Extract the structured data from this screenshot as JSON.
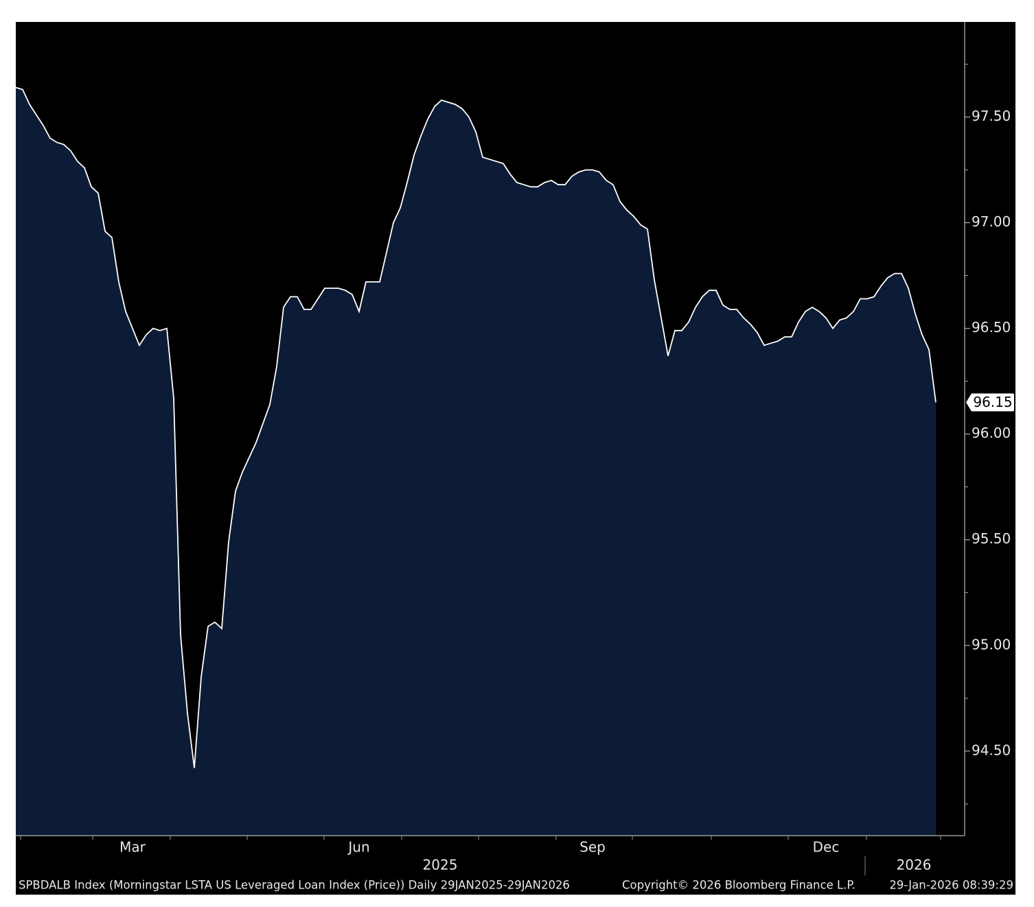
{
  "chart_data": {
    "type": "area",
    "categories": [
      null,
      null,
      null,
      null,
      null,
      null,
      null,
      null,
      null,
      null,
      null,
      null,
      null,
      null,
      null,
      null,
      null,
      "Mar",
      null,
      null,
      null,
      null,
      null,
      null,
      null,
      null,
      null,
      null,
      null,
      null,
      null,
      null,
      null,
      null,
      null,
      null,
      null,
      null,
      null,
      null,
      null,
      null,
      null,
      null,
      null,
      null,
      null,
      null,
      null,
      null,
      "Jun",
      null,
      null,
      null,
      null,
      null,
      null,
      null,
      null,
      null,
      null,
      null,
      null,
      null,
      null,
      null,
      null,
      null,
      null,
      null,
      null,
      null,
      null,
      null,
      null,
      null,
      null,
      null,
      null,
      null,
      null,
      null,
      null,
      null,
      "Sep",
      null,
      null,
      null,
      null,
      null,
      null,
      null,
      null,
      null,
      null,
      null,
      null,
      null,
      null,
      null,
      null,
      null,
      null,
      null,
      null,
      null,
      null,
      null,
      null,
      null,
      null,
      null,
      null,
      null,
      null,
      null,
      null,
      null,
      "Dec",
      null,
      null,
      null,
      null,
      null,
      null,
      null,
      null,
      null,
      null,
      null,
      null,
      null,
      null,
      null,
      null
    ],
    "values": [
      97.64,
      97.63,
      97.56,
      97.51,
      97.46,
      97.4,
      97.38,
      97.37,
      97.34,
      97.29,
      97.26,
      97.17,
      97.14,
      96.96,
      96.93,
      96.72,
      96.58,
      96.5,
      96.42,
      96.47,
      96.5,
      96.49,
      96.5,
      96.17,
      95.05,
      94.68,
      94.42,
      94.85,
      95.09,
      95.11,
      95.08,
      95.49,
      95.73,
      95.82,
      95.89,
      95.96,
      96.05,
      96.14,
      96.32,
      96.6,
      96.65,
      96.65,
      96.59,
      96.59,
      96.64,
      96.69,
      96.69,
      96.69,
      96.68,
      96.66,
      96.58,
      96.72,
      96.72,
      96.72,
      96.86,
      97.0,
      97.07,
      97.19,
      97.32,
      97.41,
      97.49,
      97.55,
      97.58,
      97.57,
      97.56,
      97.54,
      97.5,
      97.43,
      97.31,
      97.3,
      97.29,
      97.28,
      97.23,
      97.19,
      97.18,
      97.17,
      97.17,
      97.19,
      97.2,
      97.18,
      97.18,
      97.22,
      97.24,
      97.25,
      97.25,
      97.24,
      97.2,
      97.18,
      97.1,
      97.06,
      97.03,
      96.99,
      96.97,
      96.73,
      96.55,
      96.37,
      96.49,
      96.49,
      96.53,
      96.6,
      96.65,
      96.68,
      96.68,
      96.61,
      96.59,
      96.59,
      96.55,
      96.52,
      96.48,
      96.42,
      96.43,
      96.44,
      96.46,
      96.46,
      96.53,
      96.58,
      96.6,
      96.58,
      96.55,
      96.5,
      96.54,
      96.55,
      96.58,
      96.64,
      96.64,
      96.65,
      96.7,
      96.74,
      96.76,
      96.76,
      96.69,
      96.57,
      96.47,
      96.4,
      96.15
    ],
    "color": "#ffffff",
    "fill": "#0d1c36",
    "ylim": [
      94.1,
      97.95
    ],
    "yticks": [
      {
        "value": 94.5,
        "label": "94.50"
      },
      {
        "value": 95,
        "label": "95.00"
      },
      {
        "value": 95.5,
        "label": "95.50"
      },
      {
        "value": 96,
        "label": "96.00"
      },
      {
        "value": 96.5,
        "label": "96.50"
      },
      {
        "value": 97,
        "label": "97.00"
      },
      {
        "value": 97.5,
        "label": "97.50"
      }
    ],
    "yminor_ticks": [
      94.25,
      94.75,
      95.25,
      95.75,
      96.25,
      96.75,
      97.25,
      97.75
    ],
    "year_labels": [
      "2025",
      "2026"
    ],
    "footer": {
      "source": "SPBDALB Index (Morningstar LSTA US Leveraged Loan Index (Price)) Daily 29JAN2025-29JAN2026",
      "copyright": "Copyright© 2026 Bloomberg Finance L.P.",
      "timestamp": "29-Jan-2026 08:39:29"
    }
  }
}
